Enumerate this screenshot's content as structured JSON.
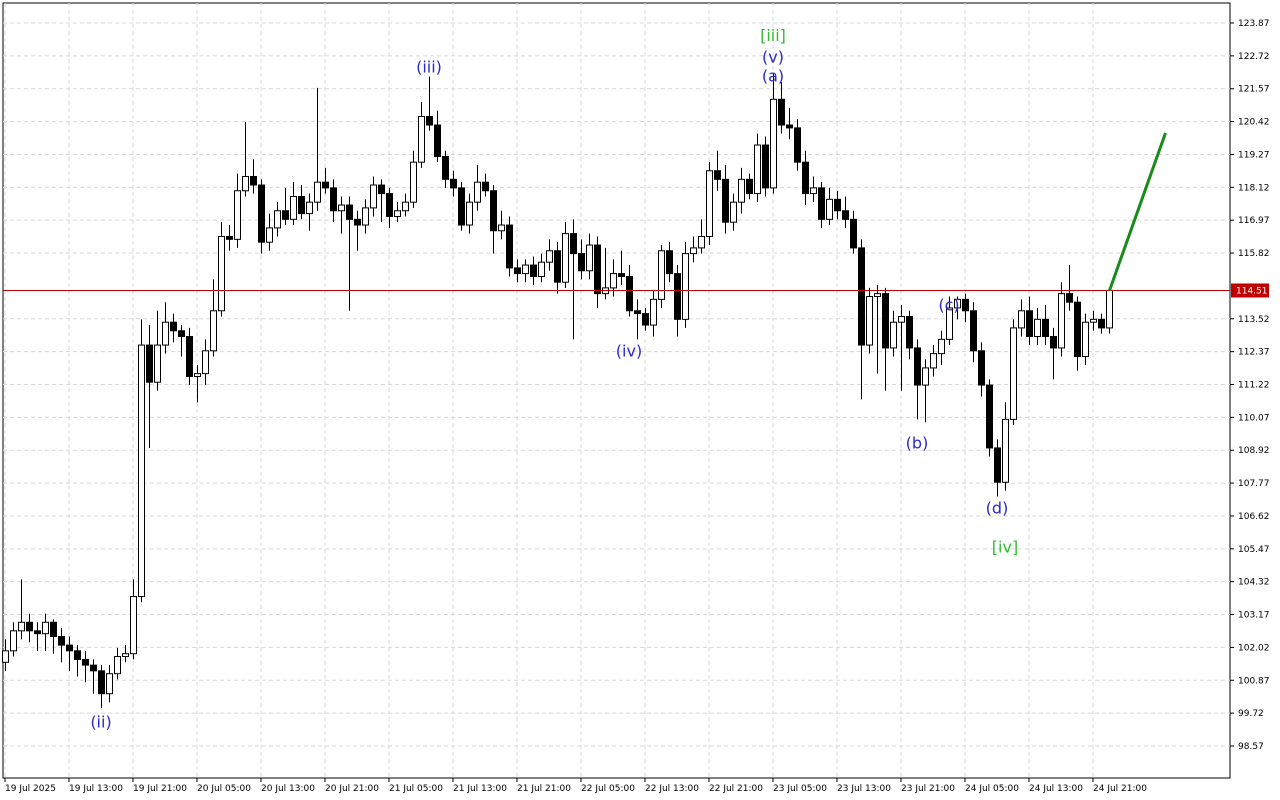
{
  "chart_data": {
    "type": "candlestick",
    "categories": [
      "19 Jul 2025",
      null,
      null,
      null,
      null,
      null,
      null,
      null,
      "19 Jul 13:00",
      null,
      null,
      null,
      null,
      null,
      null,
      null,
      "19 Jul 21:00",
      null,
      null,
      null,
      null,
      null,
      null,
      null,
      "20 Jul 05:00",
      null,
      null,
      null,
      null,
      null,
      null,
      null,
      "20 Jul 13:00",
      null,
      null,
      null,
      null,
      null,
      null,
      null,
      "20 Jul 21:00",
      null,
      null,
      null,
      null,
      null,
      null,
      null,
      "21 Jul 05:00",
      null,
      null,
      null,
      null,
      null,
      null,
      null,
      "21 Jul 13:00",
      null,
      null,
      null,
      null,
      null,
      null,
      null,
      "21 Jul 21:00",
      null,
      null,
      null,
      null,
      null,
      null,
      null,
      "22 Jul 05:00",
      null,
      null,
      null,
      null,
      null,
      null,
      null,
      "22 Jul 13:00",
      null,
      null,
      null,
      null,
      null,
      null,
      null,
      "22 Jul 21:00",
      null,
      null,
      null,
      null,
      null,
      null,
      null,
      "23 Jul 05:00",
      null,
      null,
      null,
      null,
      null,
      null,
      null,
      "23 Jul 13:00",
      null,
      null,
      null,
      null,
      null,
      null,
      null,
      "23 Jul 21:00",
      null,
      null,
      null,
      null,
      null,
      null,
      null,
      "24 Jul 05:00",
      null,
      null,
      null,
      null,
      null,
      null,
      null,
      "24 Jul 13:00",
      null,
      null,
      null,
      null,
      null,
      null,
      null,
      "24 Jul 21:00",
      null,
      null
    ],
    "ohlc": [
      [
        101.5,
        102.3,
        101.2,
        101.9
      ],
      [
        101.9,
        102.9,
        101.7,
        102.6
      ],
      [
        102.6,
        104.4,
        102.3,
        102.9
      ],
      [
        102.9,
        103.2,
        102.2,
        102.6
      ],
      [
        102.6,
        102.9,
        101.9,
        102.5
      ],
      [
        102.5,
        103.2,
        101.9,
        102.9
      ],
      [
        102.9,
        103.0,
        101.8,
        102.4
      ],
      [
        102.4,
        102.7,
        101.5,
        102.1
      ],
      [
        102.1,
        102.4,
        101.2,
        101.9
      ],
      [
        101.9,
        102.1,
        101.0,
        101.6
      ],
      [
        101.6,
        101.9,
        100.8,
        101.4
      ],
      [
        101.4,
        101.6,
        100.4,
        101.2
      ],
      [
        101.2,
        101.4,
        99.9,
        100.4
      ],
      [
        100.4,
        101.4,
        100.1,
        101.1
      ],
      [
        101.1,
        102.0,
        100.9,
        101.7
      ],
      [
        101.7,
        102.1,
        101.5,
        101.8
      ],
      [
        101.8,
        104.4,
        101.6,
        103.8
      ],
      [
        103.8,
        113.5,
        103.6,
        112.6
      ],
      [
        112.6,
        113.3,
        109.0,
        111.3
      ],
      [
        111.3,
        113.8,
        111.0,
        112.6
      ],
      [
        112.6,
        114.1,
        112.3,
        113.4
      ],
      [
        113.4,
        113.7,
        112.7,
        113.1
      ],
      [
        113.1,
        113.3,
        112.2,
        112.9
      ],
      [
        112.9,
        113.2,
        111.2,
        111.5
      ],
      [
        111.5,
        111.9,
        110.6,
        111.6
      ],
      [
        111.6,
        112.8,
        111.2,
        112.4
      ],
      [
        112.4,
        114.9,
        112.2,
        113.8
      ],
      [
        113.8,
        116.9,
        113.6,
        116.4
      ],
      [
        116.4,
        116.8,
        115.9,
        116.3
      ],
      [
        116.3,
        118.6,
        116.0,
        118.0
      ],
      [
        118.0,
        120.4,
        117.8,
        118.5
      ],
      [
        118.5,
        119.1,
        117.9,
        118.2
      ],
      [
        118.2,
        118.4,
        115.8,
        116.2
      ],
      [
        116.2,
        117.2,
        115.9,
        116.7
      ],
      [
        116.7,
        117.6,
        116.4,
        117.3
      ],
      [
        117.3,
        118.1,
        116.8,
        117.0
      ],
      [
        117.0,
        118.3,
        116.8,
        117.8
      ],
      [
        117.8,
        118.2,
        117.0,
        117.2
      ],
      [
        117.2,
        117.9,
        116.6,
        117.6
      ],
      [
        117.6,
        121.6,
        117.3,
        118.3
      ],
      [
        118.3,
        118.8,
        117.9,
        118.1
      ],
      [
        118.1,
        118.4,
        116.9,
        117.3
      ],
      [
        117.3,
        117.8,
        116.5,
        117.5
      ],
      [
        117.5,
        117.8,
        113.8,
        117.0
      ],
      [
        117.0,
        117.3,
        115.9,
        116.8
      ],
      [
        116.8,
        117.7,
        116.5,
        117.4
      ],
      [
        117.4,
        118.5,
        117.1,
        118.2
      ],
      [
        118.2,
        118.4,
        116.9,
        117.9
      ],
      [
        117.9,
        118.1,
        116.7,
        117.1
      ],
      [
        117.1,
        117.6,
        116.9,
        117.3
      ],
      [
        117.3,
        117.9,
        117.1,
        117.6
      ],
      [
        117.6,
        119.4,
        117.4,
        119.0
      ],
      [
        119.0,
        121.1,
        118.8,
        120.6
      ],
      [
        120.6,
        122.0,
        120.1,
        120.3
      ],
      [
        120.3,
        120.8,
        119.0,
        119.2
      ],
      [
        119.2,
        119.4,
        118.1,
        118.4
      ],
      [
        118.4,
        118.7,
        117.8,
        118.1
      ],
      [
        118.1,
        118.3,
        116.6,
        116.8
      ],
      [
        116.8,
        117.9,
        116.5,
        117.6
      ],
      [
        117.6,
        118.9,
        117.3,
        118.3
      ],
      [
        118.3,
        118.6,
        117.8,
        118.0
      ],
      [
        118.0,
        118.2,
        115.8,
        116.6
      ],
      [
        116.6,
        117.3,
        116.3,
        116.8
      ],
      [
        116.8,
        117.1,
        115.0,
        115.3
      ],
      [
        115.3,
        115.6,
        114.8,
        115.1
      ],
      [
        115.1,
        115.6,
        114.8,
        115.4
      ],
      [
        115.4,
        115.7,
        114.7,
        115.0
      ],
      [
        115.0,
        115.8,
        114.8,
        115.5
      ],
      [
        115.5,
        116.3,
        115.2,
        115.9
      ],
      [
        115.9,
        116.2,
        114.4,
        114.8
      ],
      [
        114.8,
        116.9,
        114.6,
        116.5
      ],
      [
        116.5,
        117.0,
        112.8,
        115.8
      ],
      [
        115.8,
        116.3,
        114.9,
        115.2
      ],
      [
        115.2,
        116.5,
        114.9,
        116.1
      ],
      [
        116.1,
        116.4,
        113.9,
        114.4
      ],
      [
        114.4,
        116.0,
        114.2,
        114.6
      ],
      [
        114.6,
        115.6,
        114.3,
        115.1
      ],
      [
        115.1,
        115.9,
        114.7,
        115.0
      ],
      [
        115.0,
        115.4,
        113.6,
        113.8
      ],
      [
        113.8,
        114.2,
        112.8,
        113.7
      ],
      [
        113.7,
        113.9,
        113.1,
        113.3
      ],
      [
        113.3,
        114.5,
        112.9,
        114.2
      ],
      [
        114.2,
        116.1,
        113.9,
        115.9
      ],
      [
        115.9,
        116.2,
        114.8,
        115.1
      ],
      [
        115.1,
        115.4,
        112.9,
        113.5
      ],
      [
        113.5,
        116.2,
        113.2,
        115.8
      ],
      [
        115.8,
        116.4,
        115.5,
        116.0
      ],
      [
        116.0,
        117.0,
        115.8,
        116.4
      ],
      [
        116.4,
        119.0,
        116.1,
        118.7
      ],
      [
        118.7,
        119.4,
        118.0,
        118.4
      ],
      [
        118.4,
        118.9,
        116.5,
        116.9
      ],
      [
        116.9,
        117.9,
        116.6,
        117.6
      ],
      [
        117.6,
        118.8,
        117.2,
        118.4
      ],
      [
        118.4,
        118.6,
        117.7,
        117.9
      ],
      [
        117.9,
        120.0,
        117.6,
        119.6
      ],
      [
        119.6,
        119.9,
        117.8,
        118.1
      ],
      [
        118.1,
        122.1,
        117.9,
        121.2
      ],
      [
        121.2,
        121.8,
        120.0,
        120.3
      ],
      [
        120.3,
        120.9,
        119.8,
        120.2
      ],
      [
        120.2,
        120.5,
        118.7,
        119.0
      ],
      [
        119.0,
        119.4,
        117.5,
        117.9
      ],
      [
        117.9,
        118.5,
        117.6,
        118.1
      ],
      [
        118.1,
        118.3,
        116.7,
        117.0
      ],
      [
        117.0,
        118.1,
        116.8,
        117.7
      ],
      [
        117.7,
        118.0,
        117.0,
        117.3
      ],
      [
        117.3,
        117.8,
        116.7,
        117.0
      ],
      [
        117.0,
        117.3,
        115.8,
        116.0
      ],
      [
        116.0,
        116.3,
        110.7,
        112.6
      ],
      [
        112.6,
        114.6,
        112.3,
        114.3
      ],
      [
        114.3,
        114.7,
        111.6,
        114.4
      ],
      [
        114.4,
        114.6,
        111.0,
        112.5
      ],
      [
        112.5,
        113.8,
        112.2,
        113.4
      ],
      [
        113.4,
        114.0,
        111.0,
        113.6
      ],
      [
        113.6,
        113.8,
        112.1,
        112.5
      ],
      [
        112.5,
        112.8,
        110.0,
        111.2
      ],
      [
        111.2,
        112.1,
        109.9,
        111.8
      ],
      [
        111.8,
        112.6,
        111.5,
        112.3
      ],
      [
        112.3,
        113.1,
        111.9,
        112.8
      ],
      [
        112.8,
        114.3,
        112.6,
        113.9
      ],
      [
        113.9,
        114.3,
        113.5,
        114.2
      ],
      [
        114.2,
        114.4,
        113.4,
        113.8
      ],
      [
        113.8,
        114.1,
        112.0,
        112.4
      ],
      [
        112.4,
        112.7,
        110.8,
        111.2
      ],
      [
        111.2,
        111.4,
        108.7,
        109.0
      ],
      [
        109.0,
        109.3,
        107.3,
        107.8
      ],
      [
        107.8,
        110.6,
        107.5,
        110.0
      ],
      [
        110.0,
        113.5,
        109.8,
        113.2
      ],
      [
        113.2,
        114.2,
        112.9,
        113.8
      ],
      [
        113.8,
        114.3,
        112.6,
        112.9
      ],
      [
        112.9,
        113.9,
        112.6,
        113.5
      ],
      [
        113.5,
        114.0,
        112.6,
        112.9
      ],
      [
        112.9,
        113.2,
        111.4,
        112.5
      ],
      [
        112.5,
        114.8,
        112.2,
        114.4
      ],
      [
        114.4,
        115.4,
        113.8,
        114.1
      ],
      [
        114.1,
        114.3,
        111.7,
        112.2
      ],
      [
        112.2,
        113.7,
        111.9,
        113.4
      ],
      [
        113.4,
        113.8,
        113.1,
        113.5
      ],
      [
        113.5,
        113.7,
        113.0,
        113.2
      ],
      [
        113.2,
        114.6,
        113.0,
        114.51
      ]
    ],
    "up_color": "#ffffff",
    "down_color": "#000000",
    "ylim": [
      97.45,
      124.57
    ],
    "yticks": [
      98.57,
      99.72,
      100.87,
      102.02,
      103.17,
      104.32,
      105.47,
      106.62,
      107.77,
      108.92,
      110.07,
      111.22,
      112.37,
      113.52,
      115.82,
      116.97,
      118.12,
      119.27,
      120.42,
      121.57,
      122.72,
      123.87
    ],
    "grid": true,
    "current_price": 114.51,
    "current_price_color": "#c00000",
    "projection": {
      "values": [
        114.51,
        120.02
      ],
      "color": "#1a8a1a"
    },
    "annotations": [
      {
        "text": "(ii)",
        "index": 12,
        "value": 99.38,
        "color": "#2a2acc"
      },
      {
        "text": "(iii)",
        "index": 53,
        "value": 122.3,
        "color": "#2a2acc"
      },
      {
        "text": "[iii]",
        "index": 96,
        "value": 123.4,
        "color": "#33bb33"
      },
      {
        "text": "(v)",
        "index": 96,
        "value": 122.65,
        "color": "#2a2acc"
      },
      {
        "text": "(a)",
        "index": 96,
        "value": 121.98,
        "color": "#2a2acc"
      },
      {
        "text": "(iv)",
        "index": 78,
        "value": 112.36,
        "color": "#2a2acc"
      },
      {
        "text": "(b)",
        "index": 114,
        "value": 109.14,
        "color": "#2a2acc"
      },
      {
        "text": "(c)",
        "index": 118,
        "value": 113.97,
        "color": "#2a2acc"
      },
      {
        "text": "(d)",
        "index": 124,
        "value": 106.87,
        "color": "#2a2acc"
      },
      {
        "text": "[iv]",
        "index": 125,
        "value": 105.5,
        "color": "#33bb33"
      }
    ]
  }
}
